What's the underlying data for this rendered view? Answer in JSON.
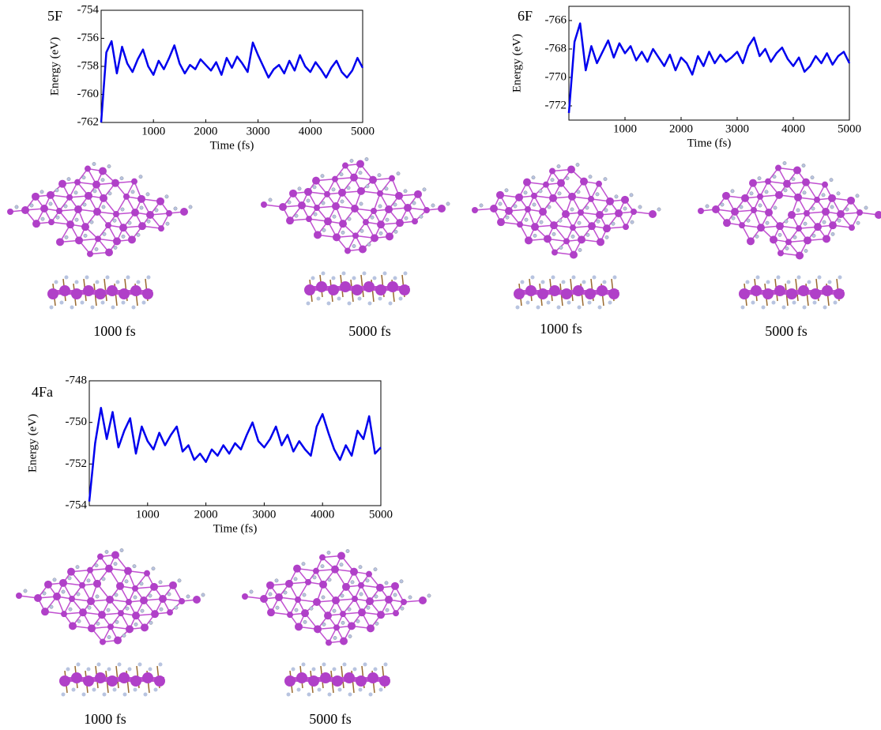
{
  "chart_data": [
    {
      "type": "line",
      "label": "5F",
      "ylabel": "Energy (eV)",
      "xlabel": "Time (fs)",
      "xlim": [
        0,
        5000
      ],
      "xticks": [
        1000,
        2000,
        3000,
        4000,
        5000
      ],
      "ylim": [
        -762,
        -754
      ],
      "yticks": [
        -754,
        -756,
        -758,
        -760,
        -762
      ],
      "x": [
        0,
        100,
        200,
        300,
        400,
        500,
        600,
        700,
        800,
        900,
        1000,
        1100,
        1200,
        1300,
        1400,
        1500,
        1600,
        1700,
        1800,
        1900,
        2000,
        2100,
        2200,
        2300,
        2400,
        2500,
        2600,
        2700,
        2800,
        2900,
        3000,
        3100,
        3200,
        3300,
        3400,
        3500,
        3600,
        3700,
        3800,
        3900,
        4000,
        4100,
        4200,
        4300,
        4400,
        4500,
        4600,
        4700,
        4800,
        4900,
        5000
      ],
      "series": [
        {
          "color": "#0000ee",
          "values": [
            -762,
            -757,
            -756.2,
            -758.5,
            -756.6,
            -757.8,
            -758.4,
            -757.5,
            -756.8,
            -758,
            -758.6,
            -757.6,
            -758.2,
            -757.4,
            -756.5,
            -757.8,
            -758.5,
            -757.9,
            -758.2,
            -757.5,
            -757.9,
            -758.3,
            -757.7,
            -758.6,
            -757.4,
            -758.1,
            -757.3,
            -757.8,
            -758.4,
            -756.3,
            -757.2,
            -758,
            -758.8,
            -758.2,
            -757.9,
            -758.5,
            -757.6,
            -758.3,
            -757.2,
            -758,
            -758.4,
            -757.7,
            -758.2,
            -758.8,
            -758.1,
            -757.6,
            -758.4,
            -758.8,
            -758.3,
            -757.4,
            -758.1
          ]
        }
      ],
      "snapshot_labels": [
        "1000 fs",
        "5000 fs"
      ]
    },
    {
      "type": "line",
      "label": "6F",
      "ylabel": "Energy (eV)",
      "xlabel": "Time (fs)",
      "xlim": [
        0,
        5000
      ],
      "xticks": [
        1000,
        2000,
        3000,
        4000,
        5000
      ],
      "ylim": [
        -773,
        -765
      ],
      "yticks": [
        -766,
        -768,
        -770,
        -772
      ],
      "x": [
        0,
        100,
        200,
        300,
        400,
        500,
        600,
        700,
        800,
        900,
        1000,
        1100,
        1200,
        1300,
        1400,
        1500,
        1600,
        1700,
        1800,
        1900,
        2000,
        2100,
        2200,
        2300,
        2400,
        2500,
        2600,
        2700,
        2800,
        2900,
        3000,
        3100,
        3200,
        3300,
        3400,
        3500,
        3600,
        3700,
        3800,
        3900,
        4000,
        4100,
        4200,
        4300,
        4400,
        4500,
        4600,
        4700,
        4800,
        4900,
        5000
      ],
      "series": [
        {
          "color": "#0000ee",
          "values": [
            -772.5,
            -767.5,
            -766.2,
            -769.5,
            -767.8,
            -769,
            -768.2,
            -767.4,
            -768.6,
            -767.6,
            -768.3,
            -767.8,
            -768.8,
            -768.2,
            -768.9,
            -768,
            -768.6,
            -769.2,
            -768.4,
            -769.5,
            -768.6,
            -769,
            -769.8,
            -768.5,
            -769.2,
            -768.2,
            -769,
            -768.4,
            -768.9,
            -768.6,
            -768.2,
            -769,
            -767.8,
            -767.2,
            -768.5,
            -768,
            -768.9,
            -768.3,
            -767.9,
            -768.7,
            -769.2,
            -768.6,
            -769.6,
            -769.2,
            -768.5,
            -769,
            -768.3,
            -769.1,
            -768.5,
            -768.2,
            -769
          ]
        }
      ],
      "snapshot_labels": [
        "1000 fs",
        "5000 fs"
      ]
    },
    {
      "type": "line",
      "label": "4Fa",
      "ylabel": "Energy (eV)",
      "xlabel": "Time (fs)",
      "xlim": [
        0,
        5000
      ],
      "xticks": [
        1000,
        2000,
        3000,
        4000,
        5000
      ],
      "ylim": [
        -754,
        -748
      ],
      "yticks": [
        -748,
        -750,
        -752,
        -754
      ],
      "x": [
        0,
        100,
        200,
        300,
        400,
        500,
        600,
        700,
        800,
        900,
        1000,
        1100,
        1200,
        1300,
        1400,
        1500,
        1600,
        1700,
        1800,
        1900,
        2000,
        2100,
        2200,
        2300,
        2400,
        2500,
        2600,
        2700,
        2800,
        2900,
        3000,
        3100,
        3200,
        3300,
        3400,
        3500,
        3600,
        3700,
        3800,
        3900,
        4000,
        4100,
        4200,
        4300,
        4400,
        4500,
        4600,
        4700,
        4800,
        4900,
        5000
      ],
      "series": [
        {
          "color": "#0000ee",
          "values": [
            -753.8,
            -751,
            -749.3,
            -750.8,
            -749.5,
            -751.2,
            -750.4,
            -749.8,
            -751.5,
            -750.2,
            -750.9,
            -751.3,
            -750.5,
            -751.1,
            -750.6,
            -750.2,
            -751.4,
            -751.1,
            -751.8,
            -751.5,
            -751.9,
            -751.3,
            -751.6,
            -751.1,
            -751.5,
            -751,
            -751.3,
            -750.6,
            -750,
            -750.9,
            -751.2,
            -750.8,
            -750.2,
            -751.1,
            -750.6,
            -751.4,
            -750.9,
            -751.3,
            -751.6,
            -750.2,
            -749.6,
            -750.5,
            -751.3,
            -751.8,
            -751.1,
            -751.6,
            -750.4,
            -750.8,
            -749.7,
            -751.5,
            -751.2
          ]
        }
      ],
      "snapshot_labels": [
        "1000 fs",
        "5000 fs"
      ]
    }
  ]
}
